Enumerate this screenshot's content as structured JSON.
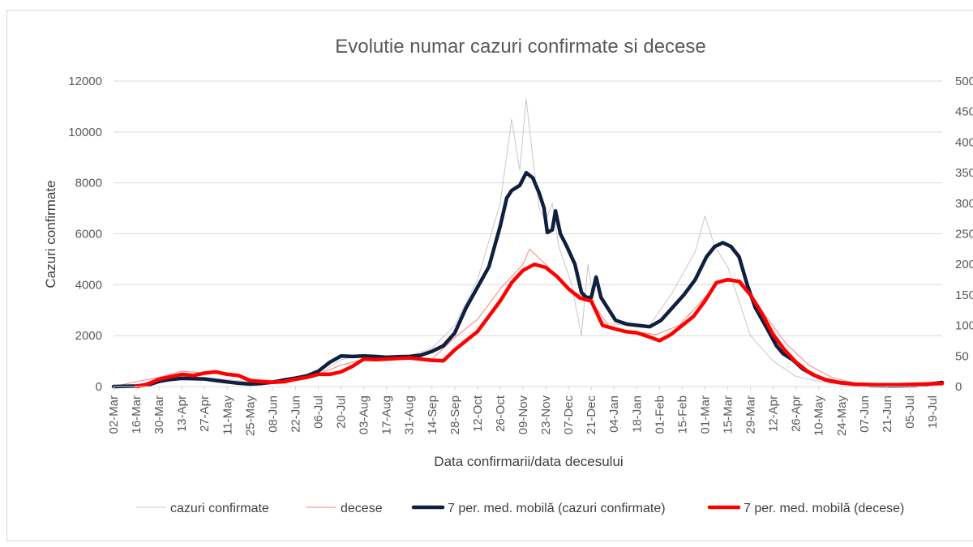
{
  "chart_data": {
    "type": "line",
    "title": "Evolutie numar cazuri confirmate si decese",
    "xlabel": "Data confirmarii/data decesului",
    "ylabel": "Cazuri confirmate",
    "y2label": "",
    "ylim": [
      0,
      12000
    ],
    "y2lim": [
      0,
      500
    ],
    "yticks": [
      "0",
      "2000",
      "4000",
      "6000",
      "8000",
      "10000",
      "12000"
    ],
    "y2ticks": [
      "0",
      "50",
      "100",
      "150",
      "200",
      "250",
      "300",
      "350",
      "400",
      "450",
      "500"
    ],
    "grid": "horizontal",
    "legend_position": "bottom",
    "x_tick_labels": [
      "02-Mar",
      "16-Mar",
      "30-Mar",
      "13-Apr",
      "27-Apr",
      "11-May",
      "25-May",
      "08-Jun",
      "22-Jun",
      "06-Jul",
      "20-Jul",
      "03-Aug",
      "17-Aug",
      "31-Aug",
      "14-Sep",
      "28-Sep",
      "12-Oct",
      "26-Oct",
      "09-Nov",
      "23-Nov",
      "07-Dec",
      "21-Dec",
      "04-Jan",
      "18-Jan",
      "01-Feb",
      "15-Feb",
      "01-Mar",
      "15-Mar",
      "29-Mar",
      "12-Apr",
      "26-Apr",
      "10-May",
      "24-May",
      "07-Jun",
      "21-Jun",
      "05-Jul",
      "19-Jul"
    ],
    "x_days_total": 510,
    "series": [
      {
        "name": "cazuri confirmate",
        "axis": "left",
        "color": "#c8c8c8",
        "style": "thin",
        "points": [
          [
            0,
            0
          ],
          [
            14,
            40
          ],
          [
            28,
            250
          ],
          [
            42,
            350
          ],
          [
            56,
            350
          ],
          [
            70,
            280
          ],
          [
            84,
            180
          ],
          [
            98,
            200
          ],
          [
            112,
            320
          ],
          [
            126,
            480
          ],
          [
            140,
            1050
          ],
          [
            154,
            1250
          ],
          [
            168,
            1150
          ],
          [
            182,
            1200
          ],
          [
            196,
            1500
          ],
          [
            210,
            2400
          ],
          [
            224,
            4200
          ],
          [
            238,
            7200
          ],
          [
            245,
            10500
          ],
          [
            250,
            8500
          ],
          [
            254,
            11300
          ],
          [
            258,
            9000
          ],
          [
            262,
            7000
          ],
          [
            266,
            6500
          ],
          [
            270,
            7200
          ],
          [
            274,
            5500
          ],
          [
            282,
            4000
          ],
          [
            288,
            2000
          ],
          [
            292,
            4800
          ],
          [
            296,
            3000
          ],
          [
            302,
            2500
          ],
          [
            316,
            2400
          ],
          [
            330,
            2400
          ],
          [
            344,
            3700
          ],
          [
            358,
            5300
          ],
          [
            364,
            6700
          ],
          [
            370,
            5500
          ],
          [
            378,
            4700
          ],
          [
            392,
            2000
          ],
          [
            406,
            1000
          ],
          [
            420,
            400
          ],
          [
            434,
            200
          ],
          [
            448,
            80
          ],
          [
            462,
            60
          ],
          [
            476,
            50
          ],
          [
            490,
            60
          ],
          [
            505,
            180
          ],
          [
            510,
            150
          ]
        ]
      },
      {
        "name": "decese",
        "axis": "right",
        "color": "#ff8080",
        "style": "thin",
        "points": [
          [
            0,
            0
          ],
          [
            14,
            8
          ],
          [
            28,
            15
          ],
          [
            42,
            25
          ],
          [
            56,
            22
          ],
          [
            70,
            20
          ],
          [
            84,
            12
          ],
          [
            98,
            10
          ],
          [
            112,
            15
          ],
          [
            126,
            20
          ],
          [
            140,
            35
          ],
          [
            154,
            45
          ],
          [
            168,
            48
          ],
          [
            182,
            45
          ],
          [
            196,
            45
          ],
          [
            210,
            80
          ],
          [
            224,
            110
          ],
          [
            238,
            160
          ],
          [
            252,
            200
          ],
          [
            256,
            225
          ],
          [
            266,
            200
          ],
          [
            280,
            160
          ],
          [
            294,
            140
          ],
          [
            306,
            95
          ],
          [
            320,
            90
          ],
          [
            334,
            85
          ],
          [
            348,
            100
          ],
          [
            362,
            140
          ],
          [
            372,
            170
          ],
          [
            386,
            175
          ],
          [
            400,
            120
          ],
          [
            414,
            70
          ],
          [
            428,
            35
          ],
          [
            442,
            15
          ],
          [
            456,
            6
          ],
          [
            470,
            4
          ],
          [
            484,
            3
          ],
          [
            498,
            4
          ],
          [
            510,
            4
          ]
        ]
      },
      {
        "name": "7 per. med. mobilă (cazuri confirmate)",
        "axis": "left",
        "color": "#0f1f3d",
        "style": "thick",
        "points": [
          [
            0,
            0
          ],
          [
            14,
            20
          ],
          [
            21,
            60
          ],
          [
            28,
            200
          ],
          [
            35,
            280
          ],
          [
            42,
            320
          ],
          [
            49,
            310
          ],
          [
            56,
            300
          ],
          [
            63,
            240
          ],
          [
            70,
            180
          ],
          [
            77,
            130
          ],
          [
            84,
            100
          ],
          [
            91,
            120
          ],
          [
            98,
            170
          ],
          [
            105,
            260
          ],
          [
            112,
            330
          ],
          [
            119,
            420
          ],
          [
            126,
            600
          ],
          [
            133,
            950
          ],
          [
            140,
            1200
          ],
          [
            147,
            1180
          ],
          [
            154,
            1200
          ],
          [
            161,
            1180
          ],
          [
            168,
            1150
          ],
          [
            175,
            1170
          ],
          [
            182,
            1180
          ],
          [
            189,
            1230
          ],
          [
            196,
            1380
          ],
          [
            203,
            1600
          ],
          [
            210,
            2100
          ],
          [
            217,
            3100
          ],
          [
            224,
            3900
          ],
          [
            231,
            4700
          ],
          [
            238,
            6300
          ],
          [
            242,
            7400
          ],
          [
            245,
            7700
          ],
          [
            250,
            7900
          ],
          [
            254,
            8400
          ],
          [
            258,
            8200
          ],
          [
            262,
            7600
          ],
          [
            265,
            7000
          ],
          [
            267,
            6050
          ],
          [
            270,
            6150
          ],
          [
            272,
            6900
          ],
          [
            275,
            6000
          ],
          [
            279,
            5500
          ],
          [
            284,
            4800
          ],
          [
            288,
            3700
          ],
          [
            291,
            3500
          ],
          [
            294,
            3500
          ],
          [
            297,
            4300
          ],
          [
            300,
            3500
          ],
          [
            305,
            3000
          ],
          [
            309,
            2600
          ],
          [
            316,
            2450
          ],
          [
            323,
            2400
          ],
          [
            330,
            2350
          ],
          [
            337,
            2600
          ],
          [
            344,
            3100
          ],
          [
            351,
            3600
          ],
          [
            358,
            4200
          ],
          [
            365,
            5100
          ],
          [
            370,
            5500
          ],
          [
            375,
            5650
          ],
          [
            380,
            5500
          ],
          [
            385,
            5100
          ],
          [
            390,
            4000
          ],
          [
            395,
            3100
          ],
          [
            402,
            2300
          ],
          [
            408,
            1600
          ],
          [
            412,
            1300
          ],
          [
            418,
            1050
          ],
          [
            424,
            700
          ],
          [
            431,
            450
          ],
          [
            438,
            270
          ],
          [
            445,
            180
          ],
          [
            452,
            120
          ],
          [
            459,
            70
          ],
          [
            466,
            40
          ],
          [
            480,
            30
          ],
          [
            494,
            40
          ],
          [
            505,
            120
          ],
          [
            510,
            160
          ]
        ]
      },
      {
        "name": "7 per. med. mobilă (decese)",
        "axis": "right",
        "color": "#ff0000",
        "style": "thick",
        "points": [
          [
            14,
            0
          ],
          [
            21,
            4
          ],
          [
            28,
            12
          ],
          [
            35,
            16
          ],
          [
            42,
            20
          ],
          [
            49,
            18
          ],
          [
            56,
            22
          ],
          [
            63,
            24
          ],
          [
            70,
            20
          ],
          [
            77,
            18
          ],
          [
            84,
            10
          ],
          [
            91,
            8
          ],
          [
            98,
            7
          ],
          [
            105,
            8
          ],
          [
            112,
            12
          ],
          [
            119,
            15
          ],
          [
            126,
            20
          ],
          [
            133,
            20
          ],
          [
            140,
            24
          ],
          [
            147,
            33
          ],
          [
            154,
            45
          ],
          [
            161,
            44
          ],
          [
            168,
            45
          ],
          [
            175,
            46
          ],
          [
            182,
            47
          ],
          [
            189,
            45
          ],
          [
            196,
            43
          ],
          [
            203,
            42
          ],
          [
            210,
            60
          ],
          [
            217,
            75
          ],
          [
            224,
            90
          ],
          [
            231,
            115
          ],
          [
            238,
            140
          ],
          [
            245,
            170
          ],
          [
            252,
            190
          ],
          [
            259,
            200
          ],
          [
            266,
            195
          ],
          [
            273,
            180
          ],
          [
            280,
            160
          ],
          [
            287,
            145
          ],
          [
            294,
            140
          ],
          [
            301,
            100
          ],
          [
            308,
            95
          ],
          [
            315,
            90
          ],
          [
            322,
            88
          ],
          [
            329,
            82
          ],
          [
            336,
            75
          ],
          [
            343,
            85
          ],
          [
            350,
            100
          ],
          [
            357,
            115
          ],
          [
            364,
            140
          ],
          [
            371,
            170
          ],
          [
            378,
            175
          ],
          [
            385,
            172
          ],
          [
            392,
            150
          ],
          [
            399,
            120
          ],
          [
            406,
            85
          ],
          [
            413,
            60
          ],
          [
            420,
            40
          ],
          [
            427,
            25
          ],
          [
            434,
            15
          ],
          [
            441,
            9
          ],
          [
            448,
            6
          ],
          [
            455,
            4
          ],
          [
            469,
            3
          ],
          [
            483,
            3
          ],
          [
            497,
            4
          ],
          [
            510,
            5
          ]
        ]
      }
    ]
  }
}
